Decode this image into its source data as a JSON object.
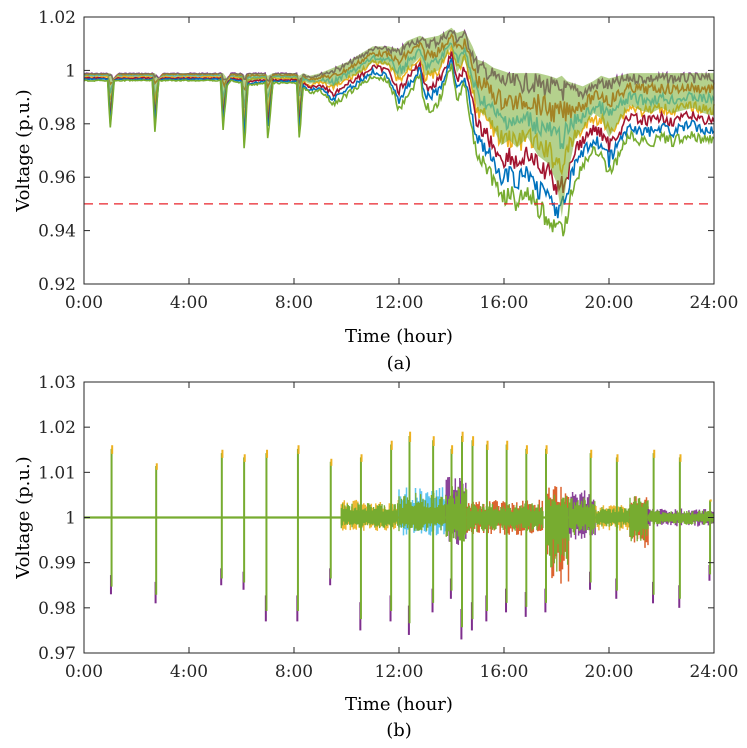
{
  "chart_data": [
    {
      "type": "line",
      "panel_label": "(a)",
      "xlabel": "Time (hour)",
      "ylabel": "Voltage (p.u.)",
      "xlim": [
        0,
        24
      ],
      "ylim": [
        0.92,
        1.02
      ],
      "x_ticks": [
        0,
        4,
        8,
        12,
        16,
        20,
        24
      ],
      "x_tick_labels": [
        "0:00",
        "4:00",
        "8:00",
        "12:00",
        "16:00",
        "20:00",
        "24:00"
      ],
      "y_ticks": [
        0.92,
        0.94,
        0.96,
        0.98,
        1.0,
        1.02
      ],
      "y_tick_labels": [
        "0.92",
        "0.94",
        "0.96",
        "0.98",
        "1",
        "1.02"
      ],
      "grid": false,
      "threshold": {
        "value": 0.95,
        "style": "dashed",
        "color": "#e8232b"
      },
      "series_colors": [
        "#7e2f8e",
        "#d95319",
        "#4dbeee",
        "#edb120",
        "#a2142f",
        "#0072bd",
        "#77ac30"
      ],
      "envelope": {
        "x": [
          0,
          0.9,
          1.0,
          1.15,
          1.3,
          2.6,
          2.7,
          2.85,
          3.0,
          3.2,
          5.2,
          5.3,
          5.45,
          5.6,
          6.0,
          6.1,
          6.25,
          6.9,
          7.0,
          7.2,
          8.1,
          8.2,
          8.35,
          8.6,
          9.0,
          9.5,
          10.0,
          10.5,
          11.0,
          11.6,
          12.0,
          12.3,
          12.8,
          13.0,
          13.5,
          14.0,
          14.2,
          14.5,
          14.8,
          15.0,
          15.3,
          15.6,
          15.9,
          16.2,
          16.5,
          16.9,
          17.3,
          17.7,
          18.0,
          18.2,
          18.4,
          18.7,
          19.0,
          19.4,
          19.7,
          20.0,
          20.4,
          20.8,
          21.2,
          21.6,
          22.0,
          22.4,
          22.8,
          23.2,
          23.6,
          24.0
        ],
        "upper": [
          0.999,
          0.999,
          0.999,
          0.997,
          0.999,
          0.999,
          0.999,
          0.997,
          0.999,
          0.999,
          0.999,
          0.999,
          0.997,
          0.999,
          0.999,
          0.998,
          0.999,
          0.999,
          0.998,
          0.999,
          0.999,
          0.998,
          0.999,
          0.998,
          0.999,
          1.001,
          1.003,
          1.006,
          1.009,
          1.009,
          1.008,
          1.011,
          1.013,
          1.012,
          1.013,
          1.016,
          1.014,
          1.015,
          1.009,
          1.004,
          1.003,
          1.001,
          1.0,
          0.999,
          0.999,
          0.999,
          0.999,
          0.998,
          0.997,
          0.998,
          0.996,
          0.995,
          0.994,
          0.996,
          0.998,
          0.997,
          0.998,
          0.999,
          0.999,
          0.999,
          0.999,
          0.999,
          0.999,
          0.999,
          0.999,
          0.999
        ],
        "center": [
          0.998,
          0.998,
          0.985,
          0.997,
          0.998,
          0.998,
          0.985,
          0.997,
          0.998,
          0.998,
          0.998,
          0.985,
          0.996,
          0.998,
          0.997,
          0.98,
          0.996,
          0.997,
          0.982,
          0.997,
          0.997,
          0.983,
          0.996,
          0.995,
          0.996,
          0.994,
          0.997,
          0.999,
          1.003,
          1.002,
          0.997,
          1.0,
          1.005,
          0.998,
          1.0,
          1.009,
          0.999,
          1.004,
          0.993,
          0.985,
          0.983,
          0.978,
          0.972,
          0.974,
          0.971,
          0.975,
          0.968,
          0.965,
          0.958,
          0.945,
          0.96,
          0.974,
          0.978,
          0.984,
          0.982,
          0.975,
          0.981,
          0.987,
          0.985,
          0.984,
          0.986,
          0.984,
          0.985,
          0.986,
          0.984,
          0.983
        ],
        "lower": [
          0.996,
          0.996,
          0.976,
          0.996,
          0.996,
          0.996,
          0.976,
          0.996,
          0.996,
          0.996,
          0.996,
          0.976,
          0.994,
          0.996,
          0.995,
          0.967,
          0.994,
          0.995,
          0.972,
          0.995,
          0.995,
          0.973,
          0.993,
          0.991,
          0.992,
          0.986,
          0.99,
          0.993,
          0.997,
          0.995,
          0.984,
          0.988,
          0.997,
          0.983,
          0.986,
          1.001,
          0.987,
          0.993,
          0.975,
          0.966,
          0.962,
          0.955,
          0.948,
          0.951,
          0.946,
          0.952,
          0.944,
          0.941,
          0.935,
          0.933,
          0.942,
          0.956,
          0.962,
          0.968,
          0.965,
          0.958,
          0.966,
          0.974,
          0.971,
          0.971,
          0.973,
          0.971,
          0.973,
          0.974,
          0.972,
          0.972
        ]
      }
    },
    {
      "type": "line",
      "panel_label": "(b)",
      "xlabel": "Time (hour)",
      "ylabel": "Voltage (p.u.)",
      "xlim": [
        0,
        24
      ],
      "ylim": [
        0.97,
        1.03
      ],
      "x_ticks": [
        0,
        4,
        8,
        12,
        16,
        20,
        24
      ],
      "x_tick_labels": [
        "0:00",
        "4:00",
        "8:00",
        "12:00",
        "16:00",
        "20:00",
        "24:00"
      ],
      "y_ticks": [
        0.97,
        0.98,
        0.99,
        1.0,
        1.01,
        1.02,
        1.03
      ],
      "y_tick_labels": [
        "0.97",
        "0.98",
        "0.99",
        "1",
        "1.01",
        "1.02",
        "1.03"
      ],
      "grid": false,
      "series_colors": [
        "#7e2f8e",
        "#d95319",
        "#4dbeee",
        "#edb120",
        "#a2142f",
        "#0072bd",
        "#77ac30"
      ],
      "baseline": 1.0,
      "spikes": [
        {
          "x": 1.05,
          "low": 0.983,
          "high": 1.016
        },
        {
          "x": 2.75,
          "low": 0.981,
          "high": 1.012
        },
        {
          "x": 5.25,
          "low": 0.985,
          "high": 1.015
        },
        {
          "x": 6.1,
          "low": 0.984,
          "high": 1.014
        },
        {
          "x": 6.95,
          "low": 0.977,
          "high": 1.015
        },
        {
          "x": 8.15,
          "low": 0.977,
          "high": 1.016
        },
        {
          "x": 9.4,
          "low": 0.985,
          "high": 1.013
        },
        {
          "x": 10.55,
          "low": 0.975,
          "high": 1.014
        },
        {
          "x": 11.7,
          "low": 0.977,
          "high": 1.017
        },
        {
          "x": 12.4,
          "low": 0.974,
          "high": 1.019
        },
        {
          "x": 13.3,
          "low": 0.979,
          "high": 1.018
        },
        {
          "x": 14.0,
          "low": 0.982,
          "high": 1.016
        },
        {
          "x": 14.4,
          "low": 0.973,
          "high": 1.019
        },
        {
          "x": 14.8,
          "low": 0.975,
          "high": 1.018
        },
        {
          "x": 15.35,
          "low": 0.977,
          "high": 1.017
        },
        {
          "x": 16.1,
          "low": 0.979,
          "high": 1.017
        },
        {
          "x": 16.85,
          "low": 0.978,
          "high": 1.016
        },
        {
          "x": 17.6,
          "low": 0.979,
          "high": 1.016
        },
        {
          "x": 19.3,
          "low": 0.984,
          "high": 1.015
        },
        {
          "x": 20.3,
          "low": 0.982,
          "high": 1.014
        },
        {
          "x": 21.7,
          "low": 0.981,
          "high": 1.015
        },
        {
          "x": 22.7,
          "low": 0.98,
          "high": 1.014
        },
        {
          "x": 23.85,
          "low": 0.986,
          "high": 1.004
        }
      ],
      "bands": [
        {
          "x0": 9.8,
          "x1": 12.0,
          "low": 0.997,
          "high": 1.004
        },
        {
          "x0": 12.0,
          "x1": 13.8,
          "low": 0.996,
          "high": 1.007
        },
        {
          "x0": 13.8,
          "x1": 14.6,
          "low": 0.993,
          "high": 1.009
        },
        {
          "x0": 14.6,
          "x1": 17.5,
          "low": 0.996,
          "high": 1.004
        },
        {
          "x0": 17.6,
          "x1": 18.5,
          "low": 0.985,
          "high": 1.007
        },
        {
          "x0": 18.5,
          "x1": 19.5,
          "low": 0.995,
          "high": 1.006
        },
        {
          "x0": 19.5,
          "x1": 20.8,
          "low": 0.997,
          "high": 1.003
        },
        {
          "x0": 20.8,
          "x1": 21.5,
          "low": 0.993,
          "high": 1.006
        },
        {
          "x0": 21.5,
          "x1": 24.0,
          "low": 0.998,
          "high": 1.002
        }
      ]
    }
  ]
}
